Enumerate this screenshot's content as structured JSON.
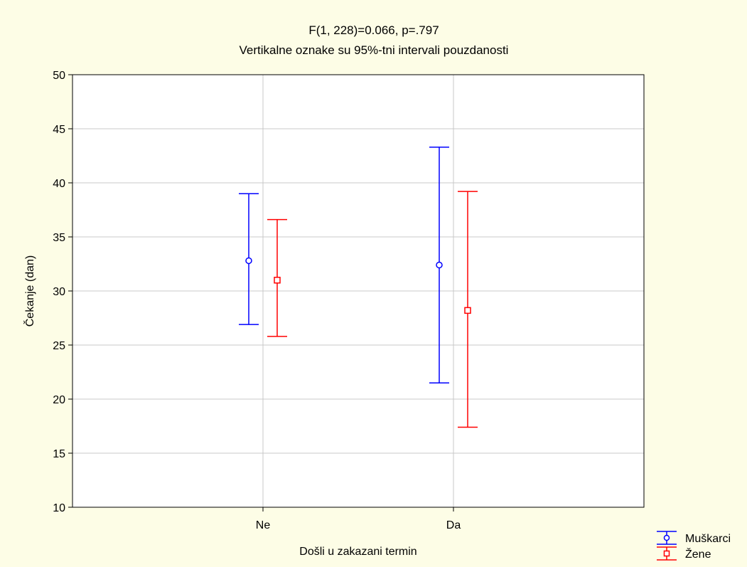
{
  "chart_data": {
    "type": "errorbar",
    "title": "F(1, 228)=0.066, p=.797",
    "subtitle": "Vertikalne oznake su 95%-tni intervali pouzdanosti",
    "xlabel": "Došli u zakazani termin",
    "ylabel": "Čekanje (dan)",
    "categories": [
      "Ne",
      "Da"
    ],
    "ylim": [
      10,
      50
    ],
    "yticks": [
      10,
      15,
      20,
      25,
      30,
      35,
      40,
      45,
      50
    ],
    "grid": true,
    "legend_position": "bottom-right",
    "series": [
      {
        "name": "Muškarci",
        "color": "#0000ff",
        "marker": "circle",
        "mean": [
          32.8,
          32.4
        ],
        "lower": [
          26.9,
          21.5
        ],
        "upper": [
          39.0,
          43.3
        ]
      },
      {
        "name": "Žene",
        "color": "#ff0000",
        "marker": "square",
        "mean": [
          31.0,
          28.2
        ],
        "lower": [
          25.8,
          17.4
        ],
        "upper": [
          36.6,
          39.2
        ]
      }
    ]
  },
  "colors": {
    "background": "#fdfde6",
    "plot_background": "#ffffff",
    "grid": "#c8c8c8"
  }
}
